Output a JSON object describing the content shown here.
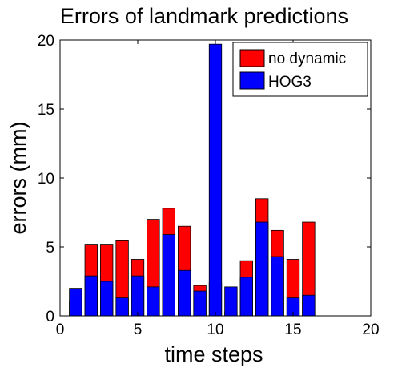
{
  "chart_data": {
    "type": "bar",
    "title": "Errors of landmark predictions",
    "xlabel": "time steps",
    "ylabel": "errors (mm)",
    "xlim": [
      0,
      20
    ],
    "ylim": [
      0,
      20
    ],
    "xticks": [
      0,
      5,
      10,
      15,
      20
    ],
    "yticks": [
      0,
      5,
      10,
      15,
      20
    ],
    "legend_position": "top-right",
    "grid": false,
    "x": [
      1,
      2,
      3,
      4,
      5,
      6,
      7,
      8,
      9,
      10,
      11,
      12,
      13,
      14,
      15,
      16
    ],
    "series": [
      {
        "name": "no dynamic",
        "color": "#ff0000",
        "values": [
          1.0,
          5.2,
          5.2,
          5.5,
          4.1,
          7.0,
          7.8,
          6.5,
          2.2,
          2.4,
          0.3,
          4.0,
          8.5,
          6.2,
          4.1,
          6.8
        ]
      },
      {
        "name": "HOG3",
        "color": "#0000ff",
        "values": [
          2.0,
          2.9,
          2.5,
          1.3,
          2.9,
          2.1,
          5.9,
          3.3,
          1.8,
          19.7,
          2.1,
          2.8,
          6.8,
          4.3,
          1.3,
          1.5
        ]
      }
    ]
  }
}
